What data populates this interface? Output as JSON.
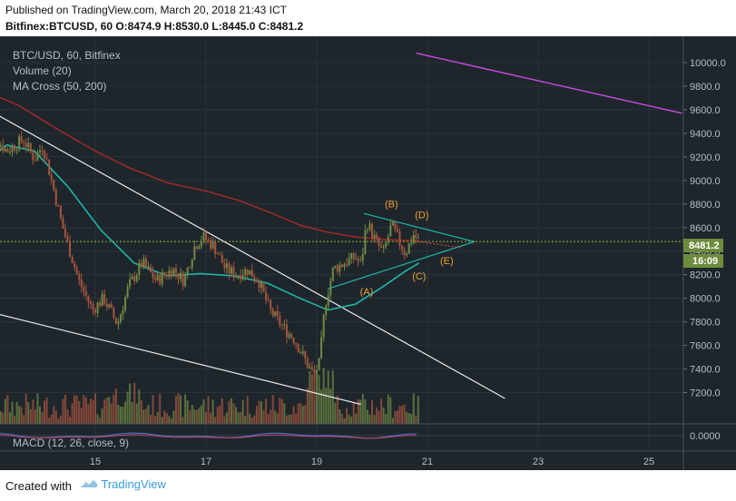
{
  "header": {
    "published": "Published on TradingView.com, March 20, 2018 21:43 ICT",
    "ohlc": "Bitfinex:BTCUSD, 60 O:8474.9 H:8530.0 L:8445.0 C:8481.2"
  },
  "legend": {
    "symbol": "BTC/USD, 60, Bitfinex",
    "volume": "Volume (20)",
    "ma": "MA Cross (50, 200)",
    "macd": "MACD (12, 26, close, 9)"
  },
  "price_badges": {
    "last": "8481.2",
    "countdown": "16:09"
  },
  "footer": {
    "created": "Created with",
    "brand": "TradingView"
  },
  "colors": {
    "background": "#1e262c",
    "candle_up": "#6f8a43",
    "candle_down": "#a8543d",
    "ma50": "#1fb6a8",
    "ma200": "#9a2a28",
    "trendline": "#e8e8e8",
    "magenta_line": "#c94be0",
    "wave_label": "#f0a030",
    "badge": "#6e8b3d"
  },
  "chart_data": {
    "type": "candlestick",
    "y_axis": {
      "range": [
        7050,
        10100
      ],
      "ticks": [
        "10000.0",
        "9800.0",
        "9600.0",
        "9400.0",
        "9200.0",
        "9000.0",
        "8800.0",
        "8600.0",
        "8400.0",
        "8200.0",
        "8000.0",
        "7800.0",
        "7600.0",
        "7400.0",
        "7200.0"
      ]
    },
    "x_axis": {
      "ticks": [
        "15",
        "17",
        "19",
        "21",
        "23",
        "25"
      ]
    },
    "macd_axis": {
      "ticks": [
        "0.0000"
      ]
    },
    "price_path": [
      {
        "day": 13.0,
        "price": 9200
      },
      {
        "day": 13.15,
        "price": 9380
      },
      {
        "day": 13.4,
        "price": 9250
      },
      {
        "day": 13.7,
        "price": 9350
      },
      {
        "day": 13.9,
        "price": 9180
      },
      {
        "day": 14.05,
        "price": 9300
      },
      {
        "day": 14.2,
        "price": 9020
      },
      {
        "day": 14.4,
        "price": 8620
      },
      {
        "day": 14.7,
        "price": 8150
      },
      {
        "day": 14.95,
        "price": 7900
      },
      {
        "day": 15.15,
        "price": 8000
      },
      {
        "day": 15.4,
        "price": 7780
      },
      {
        "day": 15.6,
        "price": 8100
      },
      {
        "day": 15.85,
        "price": 8300
      },
      {
        "day": 16.1,
        "price": 8150
      },
      {
        "day": 16.4,
        "price": 8250
      },
      {
        "day": 16.6,
        "price": 8150
      },
      {
        "day": 16.8,
        "price": 8450
      },
      {
        "day": 16.95,
        "price": 8520
      },
      {
        "day": 17.15,
        "price": 8440
      },
      {
        "day": 17.35,
        "price": 8250
      },
      {
        "day": 17.55,
        "price": 8200
      },
      {
        "day": 17.75,
        "price": 8240
      },
      {
        "day": 17.95,
        "price": 8150
      },
      {
        "day": 18.15,
        "price": 7900
      },
      {
        "day": 18.4,
        "price": 7750
      },
      {
        "day": 18.6,
        "price": 7650
      },
      {
        "day": 18.85,
        "price": 7420
      },
      {
        "day": 18.95,
        "price": 7350
      },
      {
        "day": 19.05,
        "price": 7450
      },
      {
        "day": 19.15,
        "price": 7950
      },
      {
        "day": 19.3,
        "price": 8250
      },
      {
        "day": 19.5,
        "price": 8300
      },
      {
        "day": 19.7,
        "price": 8350
      },
      {
        "day": 19.8,
        "price": 8280
      },
      {
        "day": 19.9,
        "price": 8650
      },
      {
        "day": 20.05,
        "price": 8500
      },
      {
        "day": 20.2,
        "price": 8380
      },
      {
        "day": 20.35,
        "price": 8620
      },
      {
        "day": 20.5,
        "price": 8470
      },
      {
        "day": 20.6,
        "price": 8380
      },
      {
        "day": 20.75,
        "price": 8540
      },
      {
        "day": 20.85,
        "price": 8480
      }
    ],
    "ma50": [
      {
        "day": 13.0,
        "price": 9150
      },
      {
        "day": 13.4,
        "price": 9300
      },
      {
        "day": 13.9,
        "price": 9250
      },
      {
        "day": 14.5,
        "price": 8950
      },
      {
        "day": 15.1,
        "price": 8580
      },
      {
        "day": 15.7,
        "price": 8300
      },
      {
        "day": 16.3,
        "price": 8190
      },
      {
        "day": 16.9,
        "price": 8210
      },
      {
        "day": 17.5,
        "price": 8190
      },
      {
        "day": 18.1,
        "price": 8130
      },
      {
        "day": 18.7,
        "price": 8000
      },
      {
        "day": 19.2,
        "price": 7900
      },
      {
        "day": 19.7,
        "price": 7950
      },
      {
        "day": 20.2,
        "price": 8100
      },
      {
        "day": 20.6,
        "price": 8230
      },
      {
        "day": 20.85,
        "price": 8300
      }
    ],
    "ma200": [
      {
        "day": 13.0,
        "price": 9760
      },
      {
        "day": 13.6,
        "price": 9640
      },
      {
        "day": 14.3,
        "price": 9440
      },
      {
        "day": 15.0,
        "price": 9250
      },
      {
        "day": 15.6,
        "price": 9110
      },
      {
        "day": 16.3,
        "price": 8980
      },
      {
        "day": 17.0,
        "price": 8910
      },
      {
        "day": 17.6,
        "price": 8830
      },
      {
        "day": 18.2,
        "price": 8720
      },
      {
        "day": 18.7,
        "price": 8620
      },
      {
        "day": 19.2,
        "price": 8560
      },
      {
        "day": 19.7,
        "price": 8520
      },
      {
        "day": 20.2,
        "price": 8500
      },
      {
        "day": 20.6,
        "price": 8490
      },
      {
        "day": 20.85,
        "price": 8490
      }
    ],
    "drawings": {
      "upper_trendline": [
        {
          "day": 12.95,
          "price": 9630
        },
        {
          "day": 22.4,
          "price": 7150
        }
      ],
      "lower_trendline": [
        {
          "day": 12.95,
          "price": 7900
        },
        {
          "day": 19.8,
          "price": 7100
        }
      ],
      "magenta_line": [
        {
          "day": 20.8,
          "price": 10080
        },
        {
          "day": 25.6,
          "price": 9570
        }
      ],
      "triangle_upper": [
        {
          "day": 19.85,
          "price": 8720
        },
        {
          "day": 21.85,
          "price": 8480
        }
      ],
      "triangle_lower": [
        {
          "day": 19.2,
          "price": 8080
        },
        {
          "day": 21.85,
          "price": 8480
        }
      ],
      "projection_dotted": [
        {
          "day": 20.85,
          "price": 8480
        },
        {
          "day": 21.6,
          "price": 8430
        }
      ]
    },
    "wave_labels": [
      {
        "text": "(A)",
        "day": 19.9,
        "price": 8030
      },
      {
        "text": "(B)",
        "day": 20.35,
        "price": 8770
      },
      {
        "text": "(C)",
        "day": 20.85,
        "price": 8160
      },
      {
        "text": "(D)",
        "day": 20.9,
        "price": 8680
      },
      {
        "text": "(E)",
        "day": 21.35,
        "price": 8290
      }
    ]
  }
}
